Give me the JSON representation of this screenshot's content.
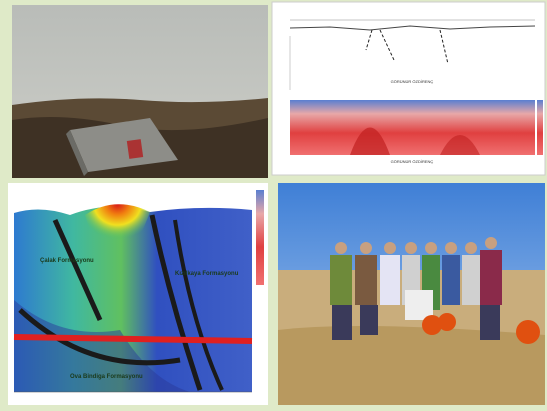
{
  "panels": {
    "resistivity_chart": {
      "label_top": "GÖRÜNÜR ÖZDİRENÇ",
      "label_bottom": "GÖRÜNÜR ÖZDİRENÇ"
    },
    "cross_section": {
      "labels": [
        "Çalak Formasyonu",
        "Kızılkaya Formasyonu",
        "Ova Bindiga Formasyonu"
      ]
    }
  }
}
